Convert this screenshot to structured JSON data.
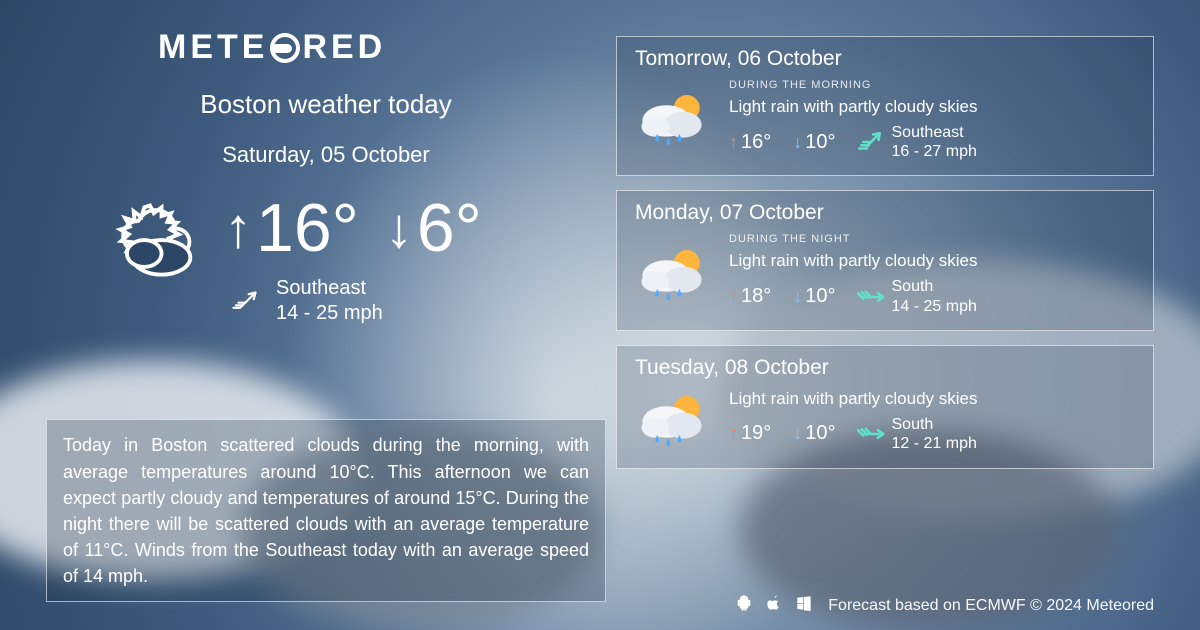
{
  "brand": {
    "name_left": "METE",
    "name_right": "RED"
  },
  "today": {
    "title": "Boston weather today",
    "date": "Saturday, 05 October",
    "high": "16°",
    "low": "6°",
    "wind_dir": "Southeast",
    "wind_speed": "14 - 25 mph",
    "description": "Today in Boston scattered clouds during the morning, with average temperatures around 10°C. This afternoon we can expect partly cloudy and temperatures of around 15°C. During the night there will be scattered clouds with an average temperature of 11°C. Winds from the Southeast today with an average speed of 14 mph."
  },
  "forecast": [
    {
      "date": "Tomorrow, 06 October",
      "period": "DURING THE MORNING",
      "cond": "Light rain with partly cloudy skies",
      "high": "16°",
      "low": "10°",
      "wind_dir": "Southeast",
      "wind_speed": "16 - 27 mph",
      "wind_rot": 135
    },
    {
      "date": "Monday, 07 October",
      "period": "DURING THE NIGHT",
      "cond": "Light rain with partly cloudy skies",
      "high": "18°",
      "low": "10°",
      "wind_dir": "South",
      "wind_speed": "14 - 25 mph",
      "wind_rot": 180
    },
    {
      "date": "Tuesday, 08 October",
      "period": "",
      "cond": "Light rain with partly cloudy skies",
      "high": "19°",
      "low": "10°",
      "wind_dir": "South",
      "wind_speed": "12 - 21 mph",
      "wind_rot": 180
    }
  ],
  "footer": {
    "credit": "Forecast based on ECMWF © 2024 Meteored"
  },
  "colors": {
    "hi_arrow": "#ff7a59",
    "lo_arrow": "#7ec8ff",
    "wind_accent": "#5fe0c8",
    "card_border": "rgba(255,255,255,0.6)"
  }
}
